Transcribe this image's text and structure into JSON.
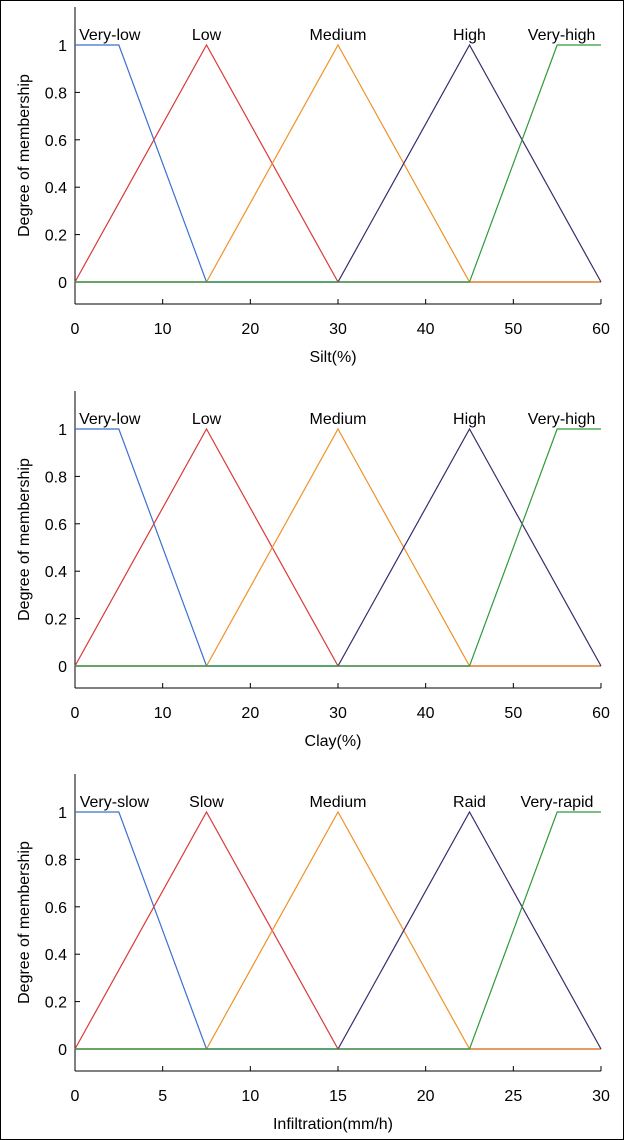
{
  "chart_data": [
    {
      "type": "line",
      "xlabel": "Silt(%)",
      "ylabel": "Degree of membership",
      "xlim": [
        0,
        60
      ],
      "ylim": [
        0,
        1
      ],
      "xticks": [
        0,
        10,
        20,
        30,
        40,
        50,
        60
      ],
      "yticks": [
        0,
        0.2,
        0.4,
        0.6,
        0.8,
        1
      ],
      "yticklabels": [
        "0",
        "0.2",
        "0.4",
        "0.6",
        "0.8",
        "1"
      ],
      "grid": false,
      "series": [
        {
          "name": "Very-low",
          "color": "#3c6fd1",
          "x": [
            0,
            5,
            15,
            60
          ],
          "y": [
            1,
            1,
            0,
            0
          ]
        },
        {
          "name": "Low",
          "color": "#d93a3a",
          "x": [
            0,
            15,
            30,
            60
          ],
          "y": [
            0,
            1,
            0,
            0
          ]
        },
        {
          "name": "Medium",
          "color": "#f0912b",
          "x": [
            0,
            15,
            30,
            45,
            60
          ],
          "y": [
            0,
            0,
            1,
            0,
            0
          ]
        },
        {
          "name": "High",
          "color": "#3b2a6e",
          "x": [
            0,
            30,
            45,
            60
          ],
          "y": [
            0,
            0,
            1,
            0
          ]
        },
        {
          "name": "Very-high",
          "color": "#2f9a3a",
          "x": [
            0,
            45,
            55,
            60
          ],
          "y": [
            0,
            0,
            1,
            1
          ]
        }
      ]
    },
    {
      "type": "line",
      "xlabel": "Clay(%)",
      "ylabel": "Degree of membership",
      "xlim": [
        0,
        60
      ],
      "ylim": [
        0,
        1
      ],
      "xticks": [
        0,
        10,
        20,
        30,
        40,
        50,
        60
      ],
      "yticks": [
        0,
        0.2,
        0.4,
        0.6,
        0.8,
        1
      ],
      "yticklabels": [
        "0",
        "0.2",
        "0.4",
        "0.6",
        "0.8",
        "1"
      ],
      "grid": false,
      "series": [
        {
          "name": "Very-low",
          "color": "#3c6fd1",
          "x": [
            0,
            5,
            15,
            60
          ],
          "y": [
            1,
            1,
            0,
            0
          ]
        },
        {
          "name": "Low",
          "color": "#d93a3a",
          "x": [
            0,
            15,
            30,
            60
          ],
          "y": [
            0,
            1,
            0,
            0
          ]
        },
        {
          "name": "Medium",
          "color": "#f0912b",
          "x": [
            0,
            15,
            30,
            45,
            60
          ],
          "y": [
            0,
            0,
            1,
            0,
            0
          ]
        },
        {
          "name": "High",
          "color": "#3b2a6e",
          "x": [
            0,
            30,
            45,
            60
          ],
          "y": [
            0,
            0,
            1,
            0
          ]
        },
        {
          "name": "Very-high",
          "color": "#2f9a3a",
          "x": [
            0,
            45,
            55,
            60
          ],
          "y": [
            0,
            0,
            1,
            1
          ]
        }
      ]
    },
    {
      "type": "line",
      "xlabel": "Infiltration(mm/h)",
      "ylabel": "Degree of membership",
      "xlim": [
        0,
        30
      ],
      "ylim": [
        0,
        1
      ],
      "xticks": [
        0,
        5,
        10,
        15,
        20,
        25,
        30
      ],
      "yticks": [
        0,
        0.2,
        0.4,
        0.6,
        0.8,
        1
      ],
      "yticklabels": [
        "0",
        "0.2",
        "0.4",
        "0.6",
        "0.8",
        "1"
      ],
      "grid": false,
      "series": [
        {
          "name": "Very-slow",
          "color": "#3c6fd1",
          "x": [
            0,
            2.5,
            7.5,
            30
          ],
          "y": [
            1,
            1,
            0,
            0
          ]
        },
        {
          "name": "Slow",
          "color": "#d93a3a",
          "x": [
            0,
            7.5,
            15,
            30
          ],
          "y": [
            0,
            1,
            0,
            0
          ]
        },
        {
          "name": "Medium",
          "color": "#f0912b",
          "x": [
            0,
            7.5,
            15,
            22.5,
            30
          ],
          "y": [
            0,
            0,
            1,
            0,
            0
          ]
        },
        {
          "name": "Raid",
          "color": "#3b2a6e",
          "x": [
            0,
            15,
            22.5,
            30
          ],
          "y": [
            0,
            0,
            1,
            0
          ]
        },
        {
          "name": "Very-rapid",
          "color": "#2f9a3a",
          "x": [
            0,
            22.5,
            27.5,
            30
          ],
          "y": [
            0,
            0,
            1,
            1
          ]
        }
      ]
    }
  ]
}
